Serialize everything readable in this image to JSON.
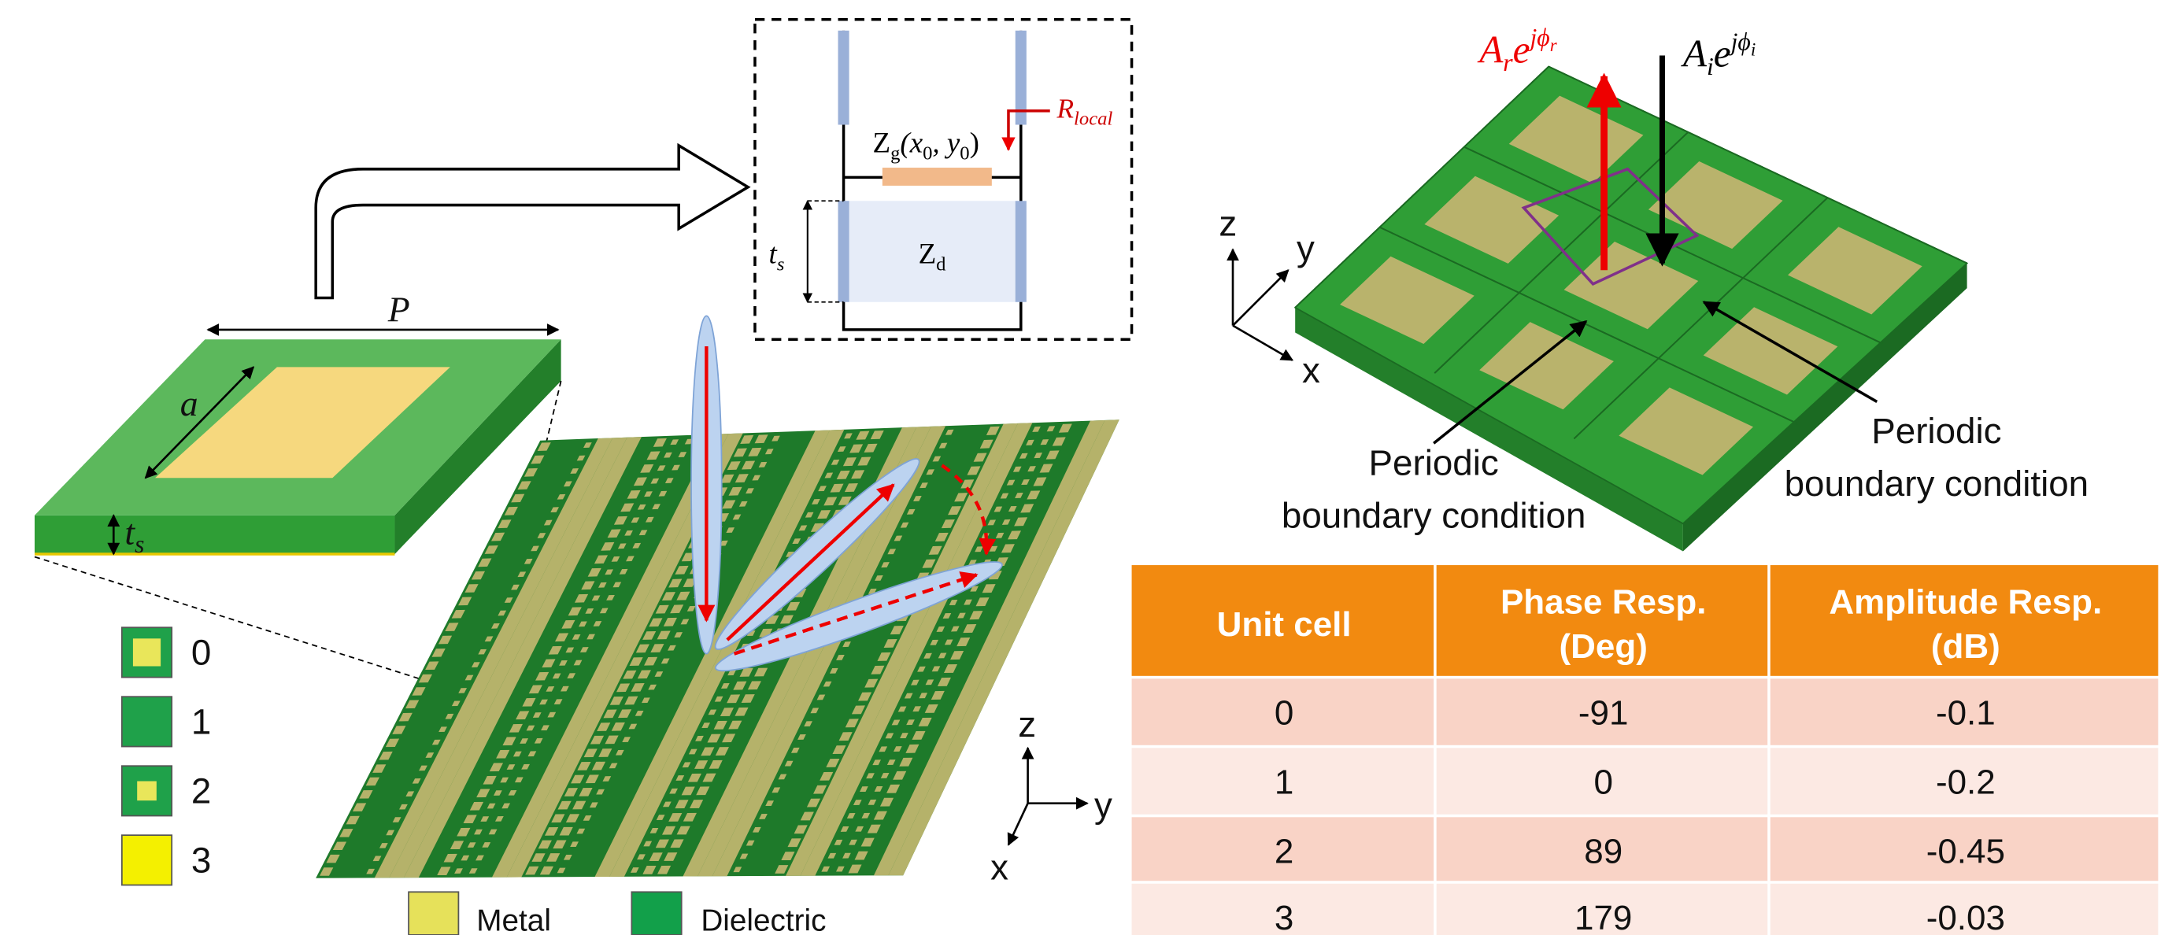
{
  "unit_cell": {
    "period_label": "P",
    "patch_label": "a",
    "thickness": [
      "t",
      "s"
    ]
  },
  "state_legend": [
    "0",
    "1",
    "2",
    "3"
  ],
  "material_legend": [
    "Metal",
    "Dielectric"
  ],
  "circuit": {
    "gap_impedance": [
      "Z",
      "g",
      "(x",
      "0",
      ", y",
      "0",
      ")"
    ],
    "resistance": [
      "R",
      "local"
    ],
    "dielectric_impedance": [
      "Z",
      "d"
    ],
    "thickness": [
      "t",
      "s"
    ]
  },
  "board_axes": [
    "z",
    "y",
    "x"
  ],
  "array": {
    "reflected": [
      "A",
      "r",
      "e",
      "jϕ",
      "r"
    ],
    "incident": [
      "A",
      "i",
      "e",
      "jϕ",
      "i"
    ],
    "axes": [
      "z",
      "y",
      "x"
    ],
    "boundary_labels": [
      [
        "Periodic",
        "boundary condition"
      ],
      [
        "Periodic",
        "boundary condition"
      ]
    ]
  },
  "table": {
    "headers": [
      [
        "Unit cell"
      ],
      [
        "Phase Resp.",
        "(Deg)"
      ],
      [
        "Amplitude Resp.",
        "(dB)"
      ]
    ],
    "rows": [
      [
        "0",
        "-91",
        "-0.1"
      ],
      [
        "1",
        "0",
        "-0.2"
      ],
      [
        "2",
        "89",
        "-0.45"
      ],
      [
        "3",
        "179",
        "-0.03"
      ]
    ]
  }
}
